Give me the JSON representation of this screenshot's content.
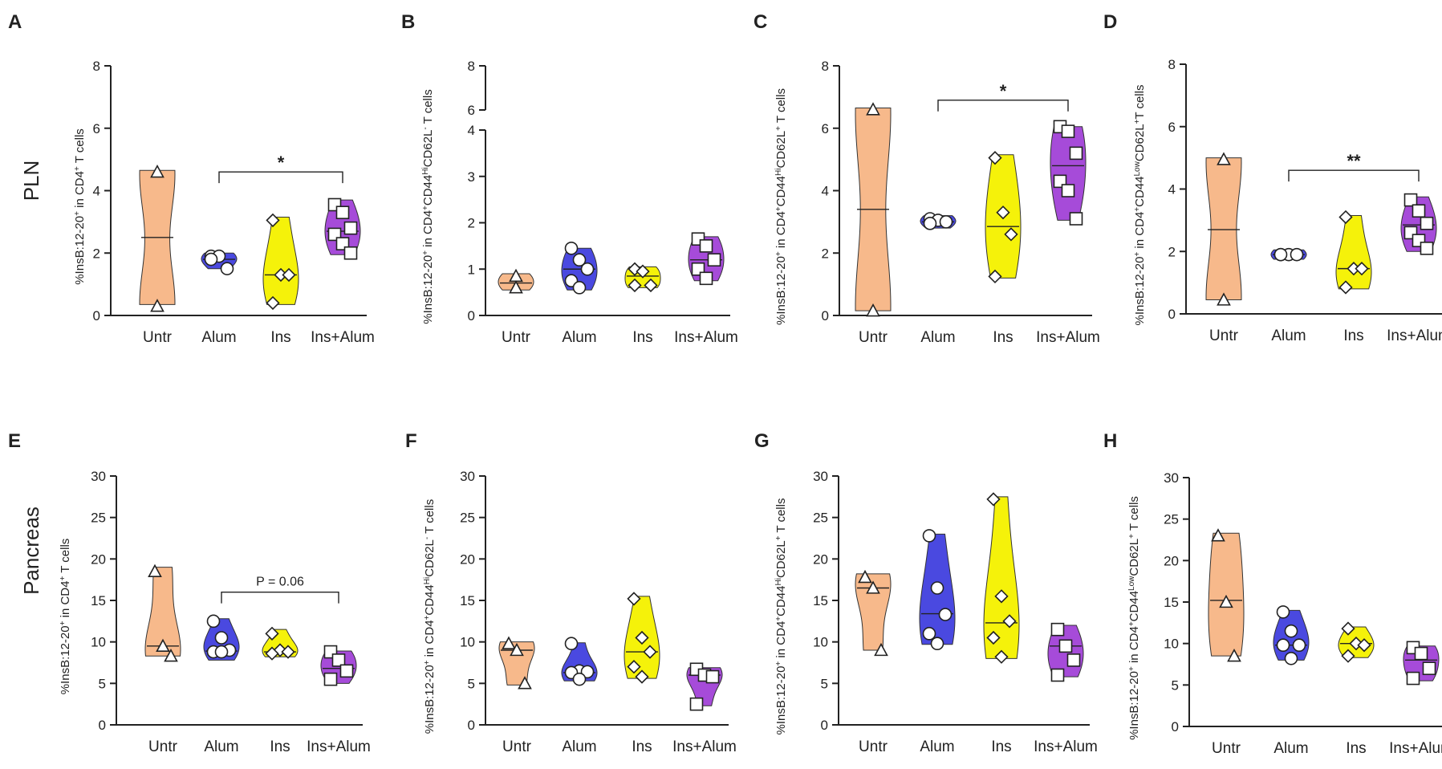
{
  "rows": [
    {
      "label": "PLN"
    },
    {
      "label": "Pancreas"
    }
  ],
  "colors": {
    "Untr": "#F7B98B",
    "Alum": "#4A49E0",
    "Ins": "#F5F20A",
    "Ins+Alum": "#A64BD9",
    "axis": "#222222"
  },
  "chart_data": [
    {
      "panel": "A",
      "type": "violin",
      "ylabel_parts": [
        "%InsB:12-20",
        "+",
        " in CD4",
        "+",
        " T cells"
      ],
      "ylim": [
        0,
        8
      ],
      "yticks": [
        "0",
        "2",
        "4",
        "6",
        "8"
      ],
      "categories": [
        "Untr",
        "Alum",
        "Ins",
        "Ins+Alum"
      ],
      "series": [
        {
          "name": "Untr",
          "marker": "triangle",
          "points": [
            4.6,
            0.3
          ],
          "median": 2.5,
          "range": [
            0.35,
            4.65
          ]
        },
        {
          "name": "Alum",
          "marker": "circle",
          "points": [
            1.9,
            1.9,
            1.5,
            1.8
          ],
          "median": 1.8,
          "range": [
            1.5,
            2.0
          ]
        },
        {
          "name": "Ins",
          "marker": "diamond",
          "points": [
            3.05,
            1.3,
            1.3,
            0.4
          ],
          "median": 1.3,
          "range": [
            0.35,
            3.15
          ]
        },
        {
          "name": "Ins+Alum",
          "marker": "square",
          "points": [
            3.55,
            3.3,
            2.8,
            2.6,
            2.3,
            2.0
          ],
          "median": 2.7,
          "range": [
            1.95,
            3.7
          ]
        }
      ],
      "annotations": [
        {
          "text": "*",
          "from": "Alum",
          "to": "Ins+Alum",
          "y": 4.6
        }
      ]
    },
    {
      "panel": "B",
      "type": "violin",
      "broken_axis": true,
      "ylabel_parts": [
        "%InsB:12-20",
        "+",
        " in CD4",
        "+",
        "CD44",
        "Hi",
        "CD62L",
        "-",
        " T cells"
      ],
      "ylim": [
        0,
        8
      ],
      "yticks": [
        "0",
        "1",
        "2",
        "3",
        "4",
        "6",
        "8"
      ],
      "categories": [
        "Untr",
        "Alum",
        "Ins",
        "Ins+Alum"
      ],
      "series": [
        {
          "name": "Untr",
          "marker": "triangle",
          "points": [
            0.85,
            0.6
          ],
          "median": 0.7,
          "range": [
            0.55,
            0.9
          ]
        },
        {
          "name": "Alum",
          "marker": "circle",
          "points": [
            1.45,
            1.2,
            1.0,
            0.75,
            0.6
          ],
          "median": 1.0,
          "range": [
            0.55,
            1.45
          ]
        },
        {
          "name": "Ins",
          "marker": "diamond",
          "points": [
            1.0,
            0.95,
            0.65,
            0.65
          ],
          "median": 0.85,
          "range": [
            0.6,
            1.05
          ]
        },
        {
          "name": "Ins+Alum",
          "marker": "square",
          "points": [
            1.65,
            1.5,
            1.2,
            1.0,
            0.8
          ],
          "median": 1.2,
          "range": [
            0.75,
            1.7
          ]
        }
      ],
      "annotations": []
    },
    {
      "panel": "C",
      "type": "violin",
      "ylabel_parts": [
        "%InsB:12-20",
        "+",
        " in CD4",
        "+",
        "CD44",
        "Hi",
        "CD62L",
        "+",
        " T cells"
      ],
      "ylim": [
        0,
        8
      ],
      "yticks": [
        "0",
        "2",
        "4",
        "6",
        "8"
      ],
      "categories": [
        "Untr",
        "Alum",
        "Ins",
        "Ins+Alum"
      ],
      "series": [
        {
          "name": "Untr",
          "marker": "triangle",
          "points": [
            6.6,
            0.15
          ],
          "median": 3.4,
          "range": [
            0.15,
            6.65
          ]
        },
        {
          "name": "Alum",
          "marker": "circle",
          "points": [
            3.1,
            3.05,
            3.0,
            2.95
          ],
          "median": 3.0,
          "range": [
            2.8,
            3.2
          ]
        },
        {
          "name": "Ins",
          "marker": "diamond",
          "points": [
            5.05,
            3.3,
            2.6,
            1.25
          ],
          "median": 2.85,
          "range": [
            1.2,
            5.15
          ]
        },
        {
          "name": "Ins+Alum",
          "marker": "square",
          "points": [
            6.05,
            5.9,
            5.2,
            4.3,
            4.0,
            3.1
          ],
          "median": 4.8,
          "range": [
            3.05,
            6.05
          ]
        }
      ],
      "annotations": [
        {
          "text": "*",
          "from": "Alum",
          "to": "Ins+Alum",
          "y": 6.9
        }
      ]
    },
    {
      "panel": "D",
      "type": "violin",
      "ylabel_parts": [
        "%InsB:12-20",
        "+",
        " in CD4",
        "+",
        "CD44",
        "Low",
        "CD62L",
        "+",
        "T cells"
      ],
      "ylim": [
        0,
        8
      ],
      "yticks": [
        "0",
        "2",
        "4",
        "6",
        "8"
      ],
      "categories": [
        "Untr",
        "Alum",
        "Ins",
        "Ins+Alum"
      ],
      "series": [
        {
          "name": "Untr",
          "marker": "triangle",
          "points": [
            4.95,
            0.45
          ],
          "median": 2.7,
          "range": [
            0.45,
            5.0
          ]
        },
        {
          "name": "Alum",
          "marker": "circle",
          "points": [
            1.9,
            1.9,
            1.9,
            1.9
          ],
          "median": 1.9,
          "range": [
            1.75,
            2.05
          ]
        },
        {
          "name": "Ins",
          "marker": "diamond",
          "points": [
            3.1,
            1.45,
            1.45,
            0.85
          ],
          "median": 1.45,
          "range": [
            0.8,
            3.15
          ]
        },
        {
          "name": "Ins+Alum",
          "marker": "square",
          "points": [
            3.65,
            3.3,
            2.9,
            2.6,
            2.35,
            2.1
          ],
          "median": 2.85,
          "range": [
            2.0,
            3.75
          ]
        }
      ],
      "annotations": [
        {
          "text": "**",
          "from": "Alum",
          "to": "Ins+Alum",
          "y": 4.6
        }
      ]
    },
    {
      "panel": "E",
      "type": "violin",
      "ylabel_parts": [
        "%InsB:12-20",
        "+",
        " in CD4",
        "+",
        " T cells"
      ],
      "ylim": [
        0,
        30
      ],
      "yticks": [
        "0",
        "5",
        "10",
        "15",
        "20",
        "25",
        "30"
      ],
      "categories": [
        "Untr",
        "Alum",
        "Ins",
        "Ins+Alum"
      ],
      "series": [
        {
          "name": "Untr",
          "marker": "triangle",
          "points": [
            18.5,
            9.5,
            8.3
          ],
          "median": 9.5,
          "range": [
            8.3,
            19.0
          ]
        },
        {
          "name": "Alum",
          "marker": "circle",
          "points": [
            12.5,
            10.5,
            9.0,
            8.8,
            8.8
          ],
          "median": 8.9,
          "range": [
            7.8,
            12.8
          ]
        },
        {
          "name": "Ins",
          "marker": "diamond",
          "points": [
            11.0,
            9.0,
            8.8,
            8.6
          ],
          "median": 8.8,
          "range": [
            8.2,
            11.5
          ]
        },
        {
          "name": "Ins+Alum",
          "marker": "square",
          "points": [
            8.8,
            7.8,
            6.5,
            5.5
          ],
          "median": 6.8,
          "range": [
            5.0,
            8.9
          ]
        }
      ],
      "annotations": [
        {
          "text": "P = 0.06",
          "from": "Alum",
          "to": "Ins+Alum",
          "y": 16.0
        }
      ]
    },
    {
      "panel": "F",
      "type": "violin",
      "ylabel_parts": [
        "%InsB:12-20",
        "+",
        " in CD4",
        "+",
        "CD44",
        "Hi",
        "CD62L",
        "-",
        " T cells"
      ],
      "ylim": [
        0,
        30
      ],
      "yticks": [
        "0",
        "5",
        "10",
        "15",
        "20",
        "25",
        "30"
      ],
      "categories": [
        "Untr",
        "Alum",
        "Ins",
        "Ins+Alum"
      ],
      "series": [
        {
          "name": "Untr",
          "marker": "triangle",
          "points": [
            9.8,
            9.0,
            5.0
          ],
          "median": 9.0,
          "range": [
            4.8,
            10.0
          ]
        },
        {
          "name": "Alum",
          "marker": "circle",
          "points": [
            9.8,
            6.5,
            6.4,
            6.3,
            5.5
          ],
          "median": 6.3,
          "range": [
            5.3,
            9.9
          ]
        },
        {
          "name": "Ins",
          "marker": "diamond",
          "points": [
            15.2,
            10.5,
            8.8,
            7.0,
            5.8
          ],
          "median": 8.8,
          "range": [
            5.6,
            15.5
          ]
        },
        {
          "name": "Ins+Alum",
          "marker": "square",
          "points": [
            6.7,
            6.0,
            5.8,
            2.5
          ],
          "median": 6.0,
          "range": [
            2.3,
            6.9
          ]
        }
      ],
      "annotations": []
    },
    {
      "panel": "G",
      "type": "violin",
      "ylabel_parts": [
        "%InsB:12-20",
        "+",
        " in CD4",
        "+",
        "CD44",
        "Hi",
        "CD62L",
        "+",
        " T cells"
      ],
      "ylim": [
        0,
        30
      ],
      "yticks": [
        "0",
        "5",
        "10",
        "15",
        "20",
        "25",
        "30"
      ],
      "categories": [
        "Untr",
        "Alum",
        "Ins",
        "Ins+Alum"
      ],
      "series": [
        {
          "name": "Untr",
          "marker": "triangle",
          "points": [
            17.8,
            16.5,
            9.0
          ],
          "median": 16.5,
          "range": [
            9.0,
            18.2
          ]
        },
        {
          "name": "Alum",
          "marker": "circle",
          "points": [
            22.8,
            16.5,
            13.3,
            11.0,
            9.8
          ],
          "median": 13.4,
          "range": [
            9.7,
            23.0
          ]
        },
        {
          "name": "Ins",
          "marker": "diamond",
          "points": [
            27.2,
            15.5,
            12.5,
            10.5,
            8.2
          ],
          "median": 12.3,
          "range": [
            8.0,
            27.5
          ]
        },
        {
          "name": "Ins+Alum",
          "marker": "square",
          "points": [
            11.5,
            9.5,
            7.8,
            6.0
          ],
          "median": 9.5,
          "range": [
            5.8,
            12.0
          ]
        }
      ],
      "annotations": []
    },
    {
      "panel": "H",
      "type": "violin",
      "ylabel_parts": [
        "%InsB:12-20",
        "+",
        " in CD4",
        "+",
        "CD44",
        "Low",
        "CD62L",
        "+",
        " T cells"
      ],
      "ylim": [
        0,
        30
      ],
      "yticks": [
        "0",
        "5",
        "10",
        "15",
        "20",
        "25",
        "30"
      ],
      "categories": [
        "Untr",
        "Alum",
        "Ins",
        "Ins+Alum"
      ],
      "series": [
        {
          "name": "Untr",
          "marker": "triangle",
          "points": [
            23.0,
            15.0,
            8.5
          ],
          "median": 15.2,
          "range": [
            8.5,
            23.3
          ]
        },
        {
          "name": "Alum",
          "marker": "circle",
          "points": [
            13.8,
            11.5,
            9.8,
            9.8,
            8.2
          ],
          "median": 9.8,
          "range": [
            8.0,
            14.0
          ]
        },
        {
          "name": "Ins",
          "marker": "diamond",
          "points": [
            11.8,
            10.0,
            9.8,
            8.5
          ],
          "median": 10.0,
          "range": [
            8.3,
            12.0
          ]
        },
        {
          "name": "Ins+Alum",
          "marker": "square",
          "points": [
            9.5,
            8.8,
            7.0,
            5.8
          ],
          "median": 8.0,
          "range": [
            5.5,
            9.7
          ]
        }
      ],
      "annotations": []
    }
  ]
}
